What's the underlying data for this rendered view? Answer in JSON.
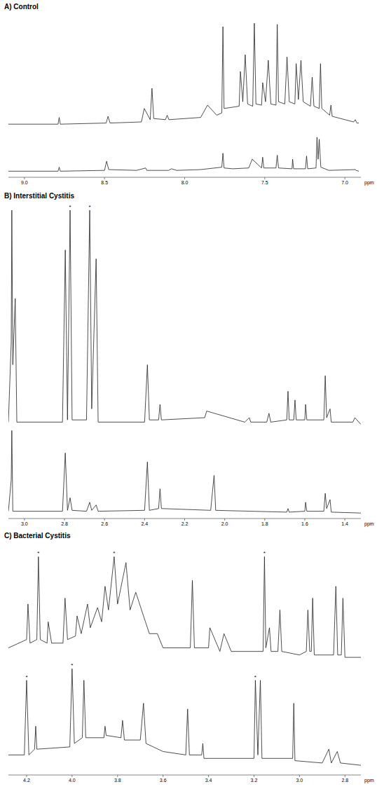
{
  "chart_data": [
    {
      "type": "line",
      "title": "A) Control",
      "x_label": "ppm",
      "xlim": [
        9.1,
        6.9
      ],
      "xticks": [
        {
          "value": 9,
          "label": "9.0"
        },
        8.5,
        {
          "value": 8,
          "label": "8.0"
        },
        7.5,
        {
          "value": 7,
          "label": "7.0"
        }
      ],
      "ylim": [
        0,
        100
      ],
      "grid": false,
      "tick_labels": "x",
      "series": [
        {
          "color": "#222222",
          "x": [
            9.1,
            8.79,
            8.783,
            8.776,
            8.49,
            8.478,
            8.466,
            8.27,
            8.252,
            8.215,
            8.204,
            8.193,
            8.12,
            8.109,
            8.098,
            7.9,
            7.857,
            7.8,
            7.768,
            7.761,
            7.754,
            7.66,
            7.652,
            7.637,
            7.622,
            7.607,
            7.575,
            7.565,
            7.555,
            7.52,
            7.513,
            7.495,
            7.478,
            7.462,
            7.43,
            7.422,
            7.414,
            7.375,
            7.361,
            7.347,
            7.312,
            7.304,
            7.29,
            7.274,
            7.26,
            7.215,
            7.204,
            7.193,
            7.16,
            7.152,
            7.144,
            7.095,
            7.087,
            7.079,
            6.945,
            6.935,
            6.925,
            6.913
          ],
          "values": [
            8,
            8,
            14,
            8,
            9,
            15,
            9,
            10,
            22,
            12,
            40,
            13,
            12,
            16,
            12,
            14,
            25,
            16,
            18,
            95,
            22,
            24,
            55,
            28,
            70,
            26,
            24,
            98,
            26,
            25,
            45,
            28,
            65,
            26,
            25,
            97,
            28,
            26,
            68,
            28,
            26,
            62,
            30,
            65,
            28,
            24,
            50,
            24,
            22,
            62,
            22,
            16,
            25,
            15,
            10,
            12,
            9,
            9
          ]
        },
        {
          "color": "#222222",
          "x": [
            9.1,
            8.79,
            8.783,
            8.776,
            8.5,
            8.487,
            8.474,
            8.3,
            8.243,
            8.236,
            8.1,
            8.083,
            8.05,
            7.9,
            7.768,
            7.761,
            7.754,
            7.7,
            7.6,
            7.578,
            7.52,
            7.513,
            7.506,
            7.43,
            7.422,
            7.414,
            7.33,
            7.326,
            7.32,
            7.246,
            7.239,
            7.232,
            7.18,
            7.174,
            7.167,
            7.16,
            7.15,
            7.1,
            6.935,
            6.93,
            6.913
          ],
          "values": [
            10,
            10,
            20,
            10,
            12,
            35,
            14,
            12,
            18,
            12,
            12,
            16,
            12,
            14,
            20,
            55,
            18,
            16,
            18,
            40,
            18,
            45,
            18,
            18,
            50,
            18,
            16,
            40,
            16,
            16,
            48,
            16,
            18,
            95,
            40,
            90,
            20,
            12,
            14,
            12,
            10
          ]
        }
      ]
    },
    {
      "type": "line",
      "title": "B) Interstitial Cystitis",
      "x_label": "ppm",
      "xlim": [
        3.08,
        1.32
      ],
      "xticks": [
        {
          "value": 3,
          "label": "3.0"
        },
        2.8,
        2.6,
        2.4,
        2.2,
        {
          "value": 2,
          "label": "2.0"
        },
        1.8,
        1.6,
        1.4
      ],
      "ylim": [
        0,
        100
      ],
      "grid": false,
      "tick_labels": "x",
      "series": [
        {
          "color": "#222222",
          "x": [
            3.08,
            3.066,
            3.063,
            3.058,
            3.046,
            3.038,
            2.81,
            2.796,
            2.785,
            2.772,
            2.762,
            2.69,
            2.674,
            2.664,
            2.642,
            2.632,
            2.4,
            2.386,
            2.376,
            2.33,
            2.323,
            2.316,
            2.1,
            2.09,
            1.9,
            1.877,
            1.87,
            1.79,
            1.779,
            1.77,
            1.69,
            1.684,
            1.678,
            1.655,
            1.649,
            1.643,
            1.6,
            1.596,
            1.59,
            1.505,
            1.498,
            1.491,
            1.474,
            1.468,
            1.36,
            1.35,
            1.32
          ],
          "values": [
            4,
            40,
            100,
            30,
            60,
            4,
            4,
            82,
            5,
            100,
            5,
            5,
            100,
            10,
            78,
            4,
            4,
            30,
            5,
            5,
            12,
            5,
            6,
            9,
            4,
            6,
            4,
            4,
            8,
            4,
            5,
            18,
            5,
            5,
            14,
            5,
            5,
            12,
            5,
            5,
            25,
            6,
            10,
            4,
            4,
            6,
            3
          ]
        },
        {
          "color": "#222222",
          "x": [
            3.08,
            3.066,
            3.063,
            3.058,
            2.81,
            2.796,
            2.785,
            2.772,
            2.762,
            2.69,
            2.674,
            2.664,
            2.642,
            2.632,
            2.4,
            2.386,
            2.376,
            2.33,
            2.323,
            2.316,
            2.07,
            2.053,
            2.045,
            1.69,
            1.684,
            1.678,
            1.6,
            1.596,
            1.59,
            1.505,
            1.498,
            1.491,
            1.474,
            1.468,
            1.32
          ],
          "values": [
            5,
            40,
            95,
            5,
            5,
            70,
            6,
            20,
            6,
            5,
            15,
            6,
            12,
            5,
            6,
            60,
            6,
            8,
            30,
            8,
            6,
            45,
            6,
            4,
            8,
            4,
            5,
            15,
            5,
            5,
            25,
            8,
            18,
            4,
            3
          ]
        }
      ],
      "annotations": [
        {
          "text": "*",
          "x": 2.772,
          "y": 100,
          "series": 0
        },
        {
          "text": "*",
          "x": 2.674,
          "y": 100,
          "series": 0
        }
      ]
    },
    {
      "type": "line",
      "title": "C) Bacterial Cystitis",
      "x_label": "ppm",
      "xlim": [
        4.28,
        2.73
      ],
      "xticks": [
        4.2,
        {
          "value": 4,
          "label": "4.0"
        },
        3.8,
        3.6,
        3.4,
        3.2,
        {
          "value": 3,
          "label": "3.0"
        },
        2.8
      ],
      "ylim": [
        0,
        100
      ],
      "grid": false,
      "tick_labels": "x",
      "series": [
        {
          "color": "#222222",
          "x": [
            4.28,
            4.2,
            4.194,
            4.185,
            4.155,
            4.148,
            4.14,
            4.11,
            4.105,
            4.09,
            4.04,
            4.031,
            4.02,
            3.985,
            3.978,
            3.96,
            3.932,
            3.92,
            3.888,
            3.87,
            3.855,
            3.84,
            3.815,
            3.8,
            3.763,
            3.745,
            3.72,
            3.686,
            3.66,
            3.625,
            3.6,
            3.48,
            3.471,
            3.462,
            3.4,
            3.394,
            3.35,
            3.332,
            3.3,
            3.16,
            3.154,
            3.148,
            3.132,
            3.125,
            3.095,
            3.086,
            3.078,
            3.0,
            2.97,
            2.963,
            2.955,
            2.948,
            2.942,
            2.935,
            2.85,
            2.84,
            2.832,
            2.816,
            2.809,
            2.8,
            2.73
          ],
          "values": [
            18,
            25,
            55,
            22,
            25,
            95,
            25,
            22,
            40,
            22,
            22,
            60,
            25,
            28,
            45,
            30,
            55,
            35,
            52,
            40,
            70,
            50,
            95,
            55,
            90,
            50,
            65,
            45,
            30,
            30,
            18,
            18,
            75,
            18,
            18,
            35,
            15,
            30,
            15,
            15,
            95,
            18,
            35,
            15,
            15,
            50,
            15,
            12,
            15,
            50,
            15,
            15,
            60,
            12,
            12,
            70,
            12,
            12,
            60,
            10,
            10
          ]
        },
        {
          "color": "#222222",
          "x": [
            4.28,
            4.21,
            4.2,
            4.19,
            4.165,
            4.16,
            4.155,
            4.01,
            4.0,
            3.99,
            3.955,
            3.948,
            3.94,
            3.86,
            3.855,
            3.85,
            3.785,
            3.778,
            3.77,
            3.7,
            3.686,
            3.675,
            3.6,
            3.5,
            3.492,
            3.484,
            3.43,
            3.425,
            3.42,
            3.2,
            3.194,
            3.183,
            3.172,
            3.165,
            3.03,
            3.025,
            3.02,
            2.9,
            2.871,
            2.86,
            2.834,
            2.82,
            2.73
          ],
          "values": [
            15,
            15,
            80,
            15,
            20,
            40,
            20,
            22,
            90,
            25,
            30,
            80,
            30,
            30,
            40,
            32,
            30,
            45,
            28,
            28,
            60,
            25,
            18,
            15,
            55,
            15,
            15,
            25,
            12,
            12,
            80,
            15,
            80,
            12,
            12,
            60,
            10,
            8,
            20,
            8,
            18,
            8,
            6
          ]
        }
      ],
      "annotations": [
        {
          "text": "*",
          "x": 4.148,
          "y": 95,
          "series": 0
        },
        {
          "text": "*",
          "x": 3.815,
          "y": 95,
          "series": 0
        },
        {
          "text": "*",
          "x": 3.154,
          "y": 95,
          "series": 0
        },
        {
          "text": "*",
          "x": 4.2,
          "y": 80,
          "series": 1
        },
        {
          "text": "*",
          "x": 4.0,
          "y": 90,
          "series": 1
        },
        {
          "text": "*",
          "x": 3.194,
          "y": 80,
          "series": 1
        }
      ]
    }
  ]
}
